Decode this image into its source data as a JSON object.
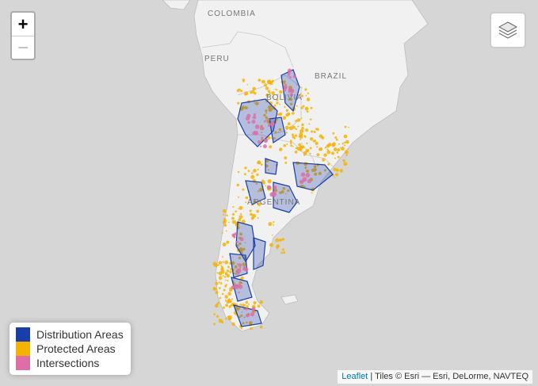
{
  "map": {
    "labels": {
      "colombia": "COLOMBIA",
      "peru": "PERU",
      "brazil": "BRAZIL",
      "bolivia": "BOLIVIA",
      "argentina": "ARGENTINA"
    }
  },
  "zoom": {
    "in_label": "+",
    "out_label": "−"
  },
  "layers_control": {
    "icon": "layers-icon"
  },
  "legend": {
    "items": [
      {
        "label": "Distribution Areas",
        "color": "#1a3ea8"
      },
      {
        "label": "Protected Areas",
        "color": "#f5b301"
      },
      {
        "label": "Intersections",
        "color": "#dd6fa6"
      }
    ]
  },
  "attribution": {
    "link": "Leaflet",
    "text": " | Tiles © Esri — Esri, DeLorme, NAVTEQ"
  },
  "colors": {
    "sea": "#d6d6d6",
    "land": "#f1f1f1",
    "distribution": "#1a3ea8",
    "protected": "#f5b301",
    "intersection": "#dd6fa6"
  }
}
